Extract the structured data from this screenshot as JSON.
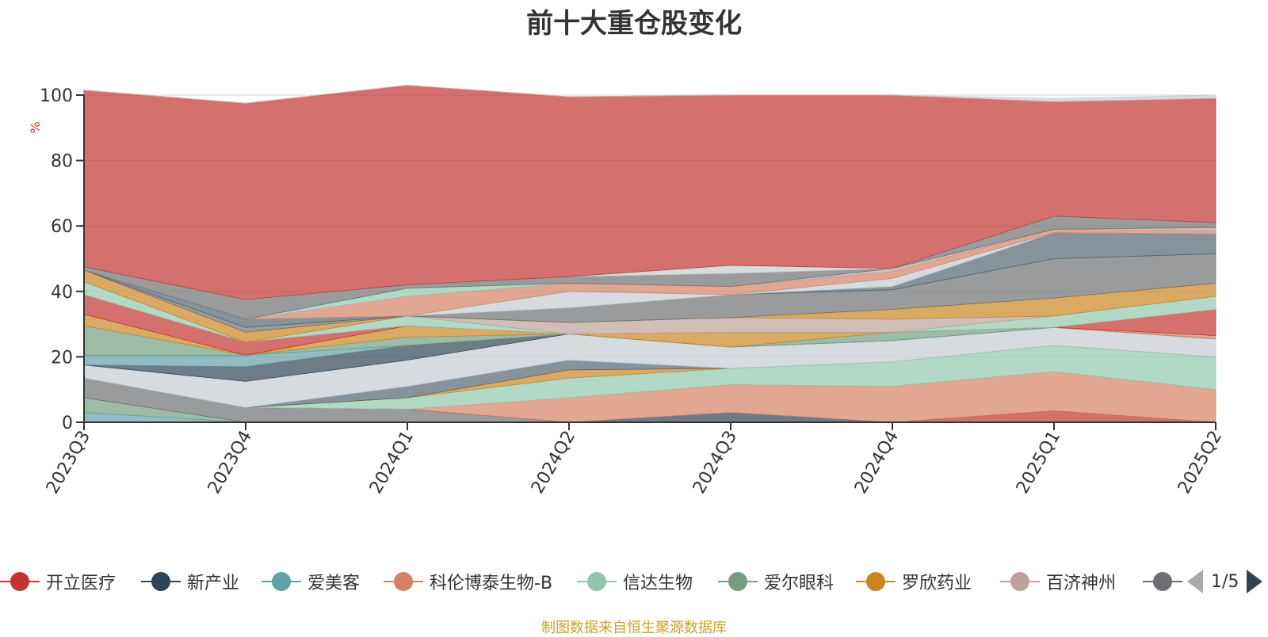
{
  "chart_data": {
    "type": "area",
    "stacked": true,
    "title": "前十大重仓股变化",
    "ylabel": "%",
    "ylim": [
      0,
      100
    ],
    "yticks": [
      0,
      20,
      40,
      60,
      80,
      100
    ],
    "grid": true,
    "legend_position": "bottom",
    "categories": [
      "2023Q3",
      "2023Q4",
      "2024Q1",
      "2024Q2",
      "2024Q3",
      "2024Q4",
      "2025Q1",
      "2025Q2"
    ],
    "series": [
      {
        "name": "爱美客",
        "color": "#61a0a8",
        "values": [
          3,
          0,
          0,
          0,
          0,
          0,
          0,
          0
        ]
      },
      {
        "name": "爱尔眼科",
        "color": "#749f83",
        "values": [
          4.5,
          0,
          0,
          0,
          0,
          0,
          0,
          0
        ]
      },
      {
        "name": "",
        "color": "#6e7074",
        "values": [
          6,
          4.5,
          4,
          0,
          0,
          0,
          0,
          0
        ]
      },
      {
        "name": "开立医疗",
        "color": "#c23531",
        "values": [
          0,
          0,
          0,
          0,
          0,
          0,
          3.5,
          0
        ]
      },
      {
        "name": "新产业",
        "color": "#2f4554",
        "values": [
          0,
          0,
          0,
          0,
          3,
          0,
          0,
          0
        ]
      },
      {
        "name": "科伦博泰生物-B",
        "color": "#d48265",
        "values": [
          0,
          0,
          0,
          7.5,
          8.5,
          11,
          12,
          10
        ]
      },
      {
        "name": "信达生物",
        "color": "#91c7ae",
        "values": [
          0,
          0,
          3.5,
          6,
          5,
          7.5,
          8,
          10
        ]
      },
      {
        "name": "",
        "color": "#ca8622",
        "values": [
          0,
          0,
          0,
          2.5,
          0,
          0,
          0,
          0
        ]
      },
      {
        "name": "",
        "color": "#546570",
        "values": [
          0,
          0,
          3.5,
          3,
          0,
          0,
          0,
          0
        ]
      },
      {
        "name": "",
        "color": "#c4ccd3",
        "values": [
          4,
          8,
          8,
          8,
          6.5,
          6.5,
          5.5,
          5.5
        ]
      },
      {
        "name": "",
        "color": "#2f4554",
        "values": [
          0,
          4.5,
          4.5,
          0,
          0,
          0,
          0,
          0
        ]
      },
      {
        "name": "",
        "color": "#61a0a8",
        "values": [
          3,
          3.5,
          0,
          0,
          0,
          0,
          0,
          0
        ]
      },
      {
        "name": "",
        "color": "#749f83",
        "values": [
          9,
          0,
          2.5,
          0,
          0,
          2.5,
          0,
          0
        ]
      },
      {
        "name": "",
        "color": "#ca8622",
        "values": [
          3.5,
          0,
          3.5,
          0,
          4.5,
          0,
          0,
          0
        ]
      },
      {
        "name": "",
        "color": "#d48265",
        "values": [
          0,
          0,
          0,
          0,
          0,
          0,
          0,
          1
        ]
      },
      {
        "name": "",
        "color": "#c23531",
        "values": [
          6,
          4,
          0,
          0,
          0,
          0,
          0,
          8
        ]
      },
      {
        "name": "",
        "color": "#91c7ae",
        "values": [
          4,
          0,
          3,
          0,
          0,
          0,
          3.5,
          4
        ]
      },
      {
        "name": "",
        "color": "#bda29a",
        "values": [
          0,
          0,
          0,
          3.5,
          4.5,
          4,
          0,
          0
        ]
      },
      {
        "name": "",
        "color": "#ca8622",
        "values": [
          3.5,
          3,
          0,
          0,
          0,
          3,
          5.5,
          4
        ]
      },
      {
        "name": "",
        "color": "#6e7074",
        "values": [
          0,
          1.5,
          0,
          4.5,
          7,
          6,
          12,
          9
        ]
      },
      {
        "name": "",
        "color": "#546570",
        "values": [
          0,
          2.5,
          0,
          0,
          0,
          1,
          8,
          6
        ]
      },
      {
        "name": "",
        "color": "#c4ccd3",
        "values": [
          0,
          0,
          0,
          5,
          0,
          2.5,
          0,
          0
        ]
      },
      {
        "name": "",
        "color": "#d48265",
        "values": [
          0,
          0,
          6,
          2.5,
          2.5,
          2,
          1,
          1
        ]
      },
      {
        "name": "",
        "color": "#91c7ae",
        "values": [
          0,
          0,
          2.5,
          0,
          0,
          0,
          0,
          0
        ]
      },
      {
        "name": "",
        "color": "#bda29a",
        "values": [
          0,
          0,
          0,
          0,
          0,
          1,
          0,
          1
        ]
      },
      {
        "name": "",
        "color": "#6e7074",
        "values": [
          1,
          6,
          1,
          2,
          4,
          0,
          4,
          1.5
        ]
      },
      {
        "name": "",
        "color": "#c4ccd3",
        "values": [
          0,
          0,
          0,
          0,
          2.5,
          0,
          0,
          0
        ]
      },
      {
        "name": "",
        "color": "#c23531",
        "values": [
          54,
          60,
          61,
          55,
          52,
          53,
          35,
          38
        ]
      },
      {
        "name": "",
        "color": "#c4ccd3",
        "values": [
          0,
          0,
          0,
          0,
          0,
          0,
          1,
          1
        ]
      }
    ]
  },
  "legend": {
    "items": [
      {
        "label": "开立医疗",
        "color": "#c23531"
      },
      {
        "label": "新产业",
        "color": "#2f4554"
      },
      {
        "label": "爱美客",
        "color": "#61a0a8"
      },
      {
        "label": "科伦博泰生物-B",
        "color": "#d48265"
      },
      {
        "label": "信达生物",
        "color": "#91c7ae"
      },
      {
        "label": "爱尔眼科",
        "color": "#749f83"
      },
      {
        "label": "罗欣药业",
        "color": "#ca8622"
      },
      {
        "label": "百济神州",
        "color": "#bda29a"
      },
      {
        "label": "",
        "color": "#6e7074"
      }
    ],
    "page_indicator": "1/5"
  },
  "footer": {
    "source": "制图数据来自恒生聚源数据库"
  }
}
